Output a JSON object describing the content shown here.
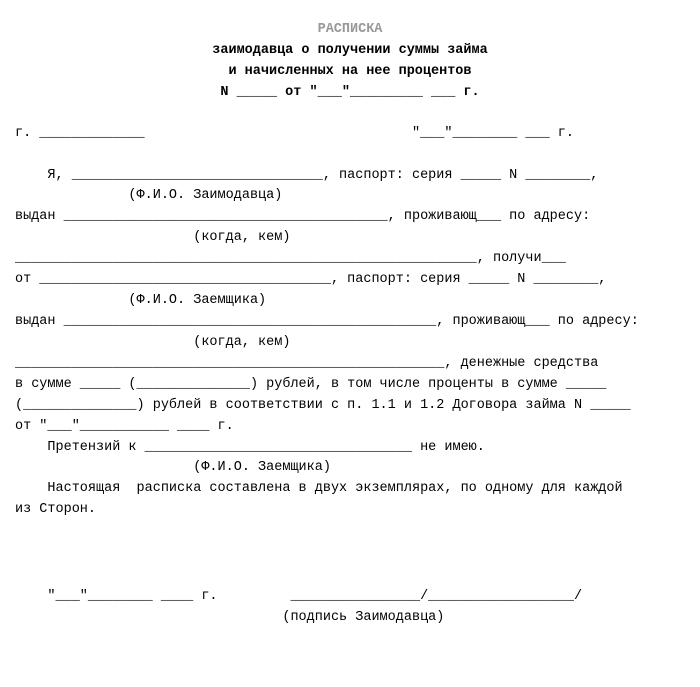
{
  "title": {
    "main": "РАСПИСКА",
    "sub1": "заимодавца о получении суммы займа",
    "sub2": "и начисленных на нее процентов",
    "num_line": "N _____ от \"___\"_________ ___ г."
  },
  "header": {
    "city_date": "г. _____________                                 \"___\"________ ___ г."
  },
  "body": {
    "l1": "    Я, _______________________________, паспорт: серия _____ N ________,",
    "l2": "              (Ф.И.О. Заимодавца)",
    "l3": "выдан ________________________________________, проживающ___ по адресу:",
    "l4": "                      (когда, кем)",
    "l5": "_________________________________________________________, получи___",
    "l6": "от ____________________________________, паспорт: серия _____ N ________,",
    "l7": "              (Ф.И.О. Заемщика)",
    "l8": "выдан ______________________________________________, проживающ___ по адресу:",
    "l9": "                      (когда, кем)",
    "l10": "_____________________________________________________, денежные средства",
    "l11": "в сумме _____ (______________) рублей, в том числе проценты в сумме _____",
    "l12": "(______________) рублей в соответствии с п. 1.1 и 1.2 Договора займа N _____",
    "l13": "от \"___\"___________ ____ г.",
    "l14": "    Претензий к _________________________________ не имею.",
    "l15": "                      (Ф.И.О. Заемщика)",
    "l16": "    Настоящая  расписка составлена в двух экземплярах, по одному для каждой",
    "l17": "из Сторон."
  },
  "signature": {
    "line": "    \"___\"________ ____ г.         ________________/__________________/",
    "caption": "                                 (подпись Заимодавца)"
  }
}
